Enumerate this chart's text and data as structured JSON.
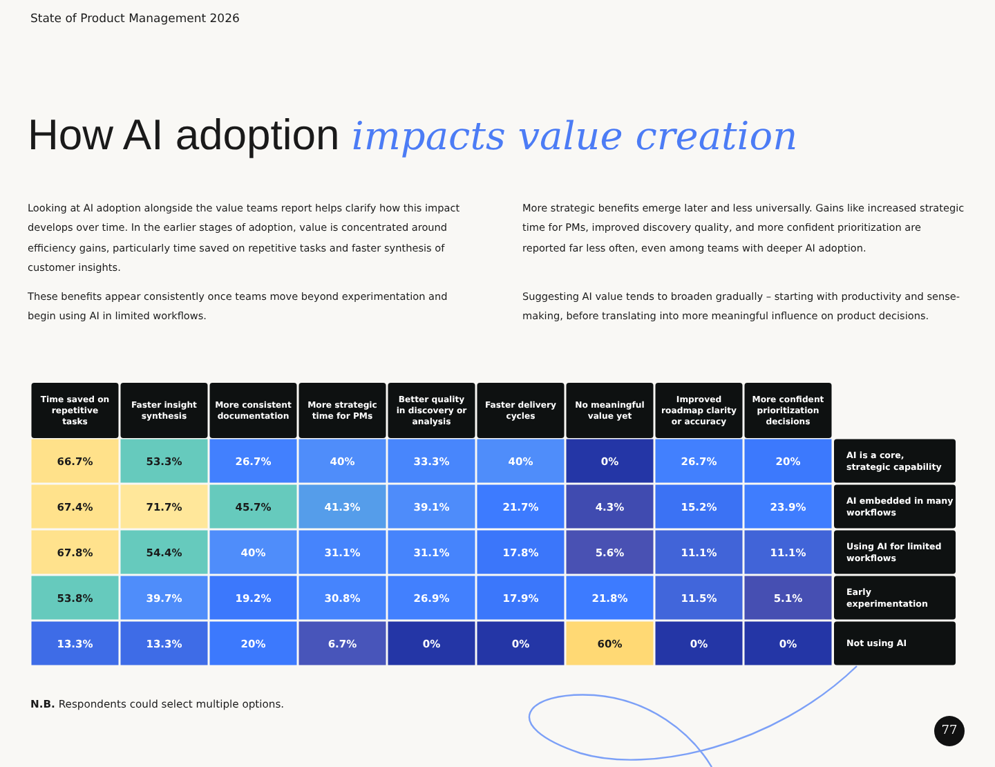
{
  "chart_data": {
    "type": "heatmap",
    "title": "How AI adoption impacts value creation",
    "categories": [
      "Time saved on repetitive tasks",
      "Faster insight synthesis",
      "More consistent documentation",
      "More strategic time for PMs",
      "Better quality in discovery or analysis",
      "Faster delivery cycles",
      "No meaningful value yet",
      "Improved roadmap clarity or accuracy",
      "More confident prioritization decisions"
    ],
    "y_categories": [
      "AI is a core, strategic capability",
      "AI embedded in many workflows",
      "Using AI for limited workflows",
      "Early experimentation",
      "Not using AI"
    ],
    "cells": [
      [
        66.7,
        53.3,
        26.7,
        40,
        33.3,
        40,
        0,
        26.7,
        20
      ],
      [
        67.4,
        71.7,
        45.7,
        41.3,
        39.1,
        21.7,
        4.3,
        15.2,
        23.9
      ],
      [
        67.8,
        54.4,
        40,
        31.1,
        31.1,
        17.8,
        5.6,
        11.1,
        11.1
      ],
      [
        53.8,
        39.7,
        19.2,
        30.8,
        26.9,
        17.9,
        21.8,
        11.5,
        5.1
      ],
      [
        13.3,
        13.3,
        20,
        6.7,
        0,
        0,
        60,
        0,
        0
      ]
    ],
    "cell_labels": [
      [
        "66.7%",
        "53.3%",
        "26.7%",
        "40%",
        "33.3%",
        "40%",
        "0%",
        "26.7%",
        "20%"
      ],
      [
        "67.4%",
        "71.7%",
        "45.7%",
        "41.3%",
        "39.1%",
        "21.7%",
        "4.3%",
        "15.2%",
        "23.9%"
      ],
      [
        "67.8%",
        "54.4%",
        "40%",
        "31.1%",
        "31.1%",
        "17.8%",
        "5.6%",
        "11.1%",
        "11.1%"
      ],
      [
        "53.8%",
        "39.7%",
        "19.2%",
        "30.8%",
        "26.9%",
        "17.9%",
        "21.8%",
        "11.5%",
        "5.1%"
      ],
      [
        "13.3%",
        "13.3%",
        "20%",
        "6.7%",
        "0%",
        "0%",
        "60%",
        "0%",
        "0%"
      ]
    ],
    "annotations": [
      "State of Product Management 2026",
      "Looking at AI adoption alongside the value teams report helps clarify how this impact develops over time. In the earlier stages of adoption, value is concentrated around efficiency gains, particularly time saved on repetitive tasks and faster synthesis of customer insights.",
      "These benefits appear consistently once teams move beyond experimentation and begin using AI in limited workflows.",
      "More strategic benefits emerge later and less universally. Gains like increased strategic time for PMs, improved discovery quality, and more confident prioritization are reported far less often, even among teams with deeper AI adoption.",
      "Suggesting AI value tends to broaden gradually – starting with productivity and sense-making, before translating into more meaningful influence on product decisions.",
      "N.B. Respondents could select multiple options.",
      "77"
    ]
  }
}
